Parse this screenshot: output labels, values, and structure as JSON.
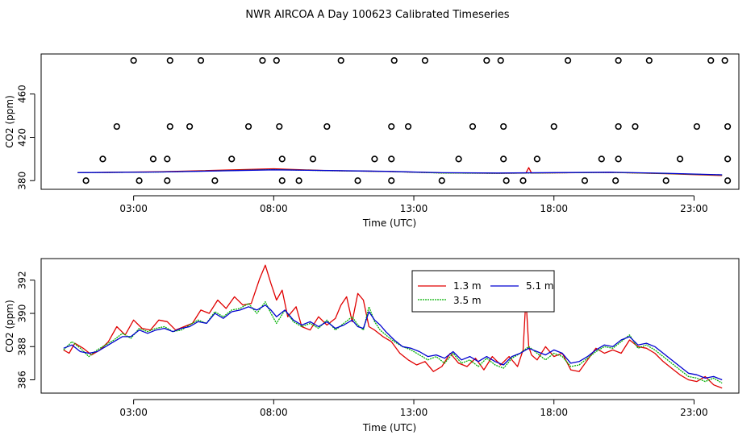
{
  "title": "NWR AIRCOA A  Day 100623  Calibrated Timeseries",
  "colors": {
    "s13": "#e00000",
    "s35": "#00b000",
    "s51": "#0000d0",
    "ink": "#000000"
  },
  "chart_data": [
    {
      "type": "scatter",
      "xlabel": "Time (UTC)",
      "ylabel": "CO2 (ppm)",
      "xlim": [
        -0.3,
        24.6
      ],
      "ylim": [
        372,
        497
      ],
      "x_ticks": [
        3,
        8,
        13,
        18,
        23
      ],
      "x_tick_labels": [
        "03:00",
        "08:00",
        "13:00",
        "18:00",
        "23:00"
      ],
      "y_ticks": [
        380,
        420,
        460
      ],
      "y_tick_labels": [
        "380",
        "420",
        "460"
      ],
      "calibration_points": [
        [
          1.3,
          380
        ],
        [
          1.9,
          400
        ],
        [
          2.4,
          430
        ],
        [
          3.0,
          491
        ],
        [
          3.2,
          380
        ],
        [
          3.7,
          400
        ],
        [
          4.2,
          380
        ],
        [
          4.2,
          400
        ],
        [
          4.3,
          430
        ],
        [
          4.3,
          491
        ],
        [
          5.0,
          430
        ],
        [
          5.4,
          491
        ],
        [
          5.9,
          380
        ],
        [
          6.5,
          400
        ],
        [
          7.1,
          430
        ],
        [
          7.6,
          491
        ],
        [
          8.1,
          491
        ],
        [
          8.2,
          430
        ],
        [
          8.3,
          400
        ],
        [
          8.3,
          380
        ],
        [
          8.9,
          380
        ],
        [
          9.4,
          400
        ],
        [
          9.9,
          430
        ],
        [
          10.4,
          491
        ],
        [
          11.0,
          380
        ],
        [
          11.6,
          400
        ],
        [
          12.2,
          380
        ],
        [
          12.2,
          400
        ],
        [
          12.2,
          430
        ],
        [
          12.3,
          491
        ],
        [
          12.8,
          430
        ],
        [
          13.4,
          491
        ],
        [
          14.0,
          380
        ],
        [
          14.6,
          400
        ],
        [
          15.1,
          430
        ],
        [
          15.6,
          491
        ],
        [
          16.1,
          491
        ],
        [
          16.2,
          430
        ],
        [
          16.2,
          400
        ],
        [
          16.3,
          380
        ],
        [
          16.9,
          380
        ],
        [
          17.4,
          400
        ],
        [
          18.0,
          430
        ],
        [
          18.5,
          491
        ],
        [
          19.1,
          380
        ],
        [
          19.7,
          400
        ],
        [
          20.2,
          380
        ],
        [
          20.3,
          400
        ],
        [
          20.3,
          430
        ],
        [
          20.3,
          491
        ],
        [
          20.9,
          430
        ],
        [
          21.4,
          491
        ],
        [
          22.0,
          380
        ],
        [
          22.5,
          400
        ],
        [
          23.1,
          430
        ],
        [
          23.6,
          491
        ],
        [
          24.1,
          491
        ],
        [
          24.2,
          430
        ],
        [
          24.2,
          400
        ],
        [
          24.2,
          380
        ]
      ],
      "series": [
        {
          "name": "1.3 m",
          "x": [
            1.0,
            4.0,
            8.0,
            10.0,
            12.0,
            14.0,
            16.0,
            17.0,
            17.1,
            17.2,
            20.0,
            22.0,
            24.0
          ],
          "values": [
            387.3,
            388.2,
            391.0,
            389.2,
            388.5,
            387.2,
            386.8,
            387.0,
            392.0,
            387.0,
            387.6,
            386.4,
            384.7
          ]
        },
        {
          "name": "3.5 m",
          "x": [
            1.0,
            4.0,
            8.0,
            10.0,
            12.0,
            14.0,
            16.0,
            20.0,
            22.0,
            24.0
          ],
          "values": [
            387.3,
            388.0,
            390.2,
            389.2,
            388.5,
            387.0,
            386.8,
            387.6,
            386.6,
            385.2
          ]
        },
        {
          "name": "5.1 m",
          "x": [
            1.0,
            4.0,
            8.0,
            10.0,
            12.0,
            14.0,
            16.0,
            20.0,
            22.0,
            24.0
          ],
          "values": [
            387.4,
            388.0,
            390.0,
            389.3,
            388.6,
            387.3,
            387.0,
            387.8,
            386.8,
            385.4
          ]
        }
      ]
    },
    {
      "type": "line",
      "xlabel": "Time (UTC)",
      "ylabel": "CO2 (ppm)",
      "xlim": [
        -0.3,
        24.6
      ],
      "ylim": [
        385.2,
        393.3
      ],
      "x_ticks": [
        3,
        8,
        13,
        18,
        23
      ],
      "x_tick_labels": [
        "03:00",
        "08:00",
        "13:00",
        "18:00",
        "23:00"
      ],
      "y_ticks": [
        386,
        388,
        390,
        392
      ],
      "y_tick_labels": [
        "386",
        "388",
        "390",
        "392"
      ],
      "legend_position": "top-center",
      "series": [
        {
          "name": "1.3 m",
          "x": [
            0.5,
            0.7,
            0.9,
            1.2,
            1.5,
            1.8,
            2.1,
            2.4,
            2.7,
            3.0,
            3.3,
            3.6,
            3.9,
            4.2,
            4.5,
            4.8,
            5.1,
            5.4,
            5.7,
            6.0,
            6.3,
            6.6,
            6.9,
            7.2,
            7.5,
            7.7,
            7.9,
            8.1,
            8.3,
            8.5,
            8.8,
            9.0,
            9.3,
            9.6,
            9.9,
            10.2,
            10.4,
            10.6,
            10.8,
            11.0,
            11.2,
            11.4,
            11.6,
            11.9,
            12.2,
            12.5,
            12.8,
            13.1,
            13.4,
            13.7,
            14.0,
            14.3,
            14.6,
            14.9,
            15.2,
            15.5,
            15.8,
            16.1,
            16.4,
            16.7,
            16.9,
            17.0,
            17.1,
            17.2,
            17.4,
            17.7,
            18.0,
            18.3,
            18.6,
            18.9,
            19.2,
            19.5,
            19.8,
            20.1,
            20.4,
            20.7,
            21.0,
            21.3,
            21.6,
            21.9,
            22.2,
            22.5,
            22.8,
            23.1,
            23.4,
            23.7,
            24.0
          ],
          "values": [
            387.8,
            387.6,
            388.2,
            387.9,
            387.5,
            387.8,
            388.3,
            389.2,
            388.7,
            389.6,
            389.1,
            389.0,
            389.6,
            389.5,
            389.0,
            389.2,
            389.4,
            390.2,
            390.0,
            390.8,
            390.3,
            391.0,
            390.5,
            390.6,
            392.1,
            392.9,
            391.8,
            390.8,
            391.4,
            389.8,
            390.4,
            389.2,
            389.0,
            389.8,
            389.3,
            389.7,
            390.5,
            391.0,
            389.5,
            391.2,
            390.8,
            389.2,
            389.0,
            388.6,
            388.3,
            387.6,
            387.2,
            386.9,
            387.1,
            386.5,
            386.8,
            387.6,
            387.0,
            386.8,
            387.3,
            386.6,
            387.4,
            386.9,
            387.4,
            386.8,
            387.8,
            390.9,
            388.0,
            387.5,
            387.2,
            388.0,
            387.4,
            387.6,
            386.6,
            386.5,
            387.2,
            387.9,
            387.6,
            387.8,
            387.6,
            388.4,
            388.0,
            387.9,
            387.6,
            387.1,
            386.7,
            386.3,
            386.0,
            385.9,
            386.2,
            385.7,
            385.5
          ]
        },
        {
          "name": "3.5 m",
          "x": [
            0.5,
            0.8,
            1.1,
            1.4,
            1.7,
            2.0,
            2.3,
            2.6,
            2.9,
            3.2,
            3.5,
            3.8,
            4.1,
            4.4,
            4.7,
            5.0,
            5.3,
            5.6,
            5.9,
            6.2,
            6.5,
            6.8,
            7.1,
            7.4,
            7.7,
            7.9,
            8.1,
            8.4,
            8.7,
            9.0,
            9.3,
            9.6,
            9.9,
            10.2,
            10.5,
            10.8,
            11.0,
            11.2,
            11.4,
            11.6,
            11.8,
            12.0,
            12.3,
            12.6,
            12.9,
            13.2,
            13.5,
            13.8,
            14.1,
            14.4,
            14.7,
            15.0,
            15.3,
            15.6,
            15.9,
            16.2,
            16.5,
            16.8,
            17.1,
            17.4,
            17.7,
            18.0,
            18.3,
            18.6,
            18.9,
            19.2,
            19.5,
            19.8,
            20.1,
            20.4,
            20.7,
            21.0,
            21.3,
            21.6,
            21.9,
            22.2,
            22.5,
            22.8,
            23.1,
            23.4,
            23.7,
            24.0
          ],
          "values": [
            387.8,
            388.3,
            387.9,
            387.4,
            387.8,
            388.1,
            388.4,
            388.8,
            388.5,
            389.1,
            388.9,
            389.1,
            389.2,
            388.9,
            389.0,
            389.3,
            389.6,
            389.4,
            390.1,
            389.8,
            390.2,
            390.3,
            390.6,
            390.0,
            390.7,
            390.0,
            389.4,
            390.2,
            389.5,
            389.2,
            389.4,
            389.1,
            389.6,
            389.0,
            389.4,
            389.8,
            389.3,
            389.0,
            390.4,
            389.5,
            389.0,
            388.7,
            388.3,
            388.0,
            387.8,
            387.5,
            387.2,
            387.4,
            387.0,
            387.6,
            387.0,
            387.2,
            386.8,
            387.3,
            386.9,
            386.7,
            387.3,
            387.6,
            388.0,
            387.6,
            387.2,
            387.6,
            387.4,
            386.8,
            386.9,
            387.3,
            387.7,
            388.0,
            387.9,
            388.3,
            388.7,
            387.9,
            388.1,
            387.8,
            387.4,
            387.0,
            386.6,
            386.2,
            386.1,
            385.9,
            386.1,
            385.8
          ]
        },
        {
          "name": "5.1 m",
          "x": [
            0.5,
            0.8,
            1.1,
            1.4,
            1.7,
            2.0,
            2.3,
            2.6,
            2.9,
            3.2,
            3.5,
            3.8,
            4.1,
            4.4,
            4.7,
            5.0,
            5.3,
            5.6,
            5.9,
            6.2,
            6.5,
            6.8,
            7.1,
            7.4,
            7.7,
            7.9,
            8.1,
            8.4,
            8.7,
            9.0,
            9.3,
            9.6,
            9.9,
            10.2,
            10.5,
            10.8,
            11.0,
            11.2,
            11.4,
            11.6,
            11.8,
            12.0,
            12.3,
            12.6,
            12.9,
            13.2,
            13.5,
            13.8,
            14.1,
            14.4,
            14.7,
            15.0,
            15.3,
            15.6,
            15.9,
            16.2,
            16.5,
            16.8,
            17.1,
            17.4,
            17.7,
            18.0,
            18.3,
            18.6,
            18.9,
            19.2,
            19.5,
            19.8,
            20.1,
            20.4,
            20.7,
            21.0,
            21.3,
            21.6,
            21.9,
            22.2,
            22.5,
            22.8,
            23.1,
            23.4,
            23.7,
            24.0
          ],
          "values": [
            387.9,
            388.1,
            387.7,
            387.6,
            387.7,
            388.0,
            388.3,
            388.6,
            388.6,
            389.0,
            388.8,
            389.0,
            389.1,
            388.9,
            389.1,
            389.2,
            389.5,
            389.4,
            390.0,
            389.7,
            390.1,
            390.2,
            390.4,
            390.2,
            390.5,
            390.2,
            389.8,
            390.2,
            389.6,
            389.3,
            389.5,
            389.2,
            389.5,
            389.1,
            389.3,
            389.6,
            389.2,
            389.1,
            390.1,
            389.6,
            389.3,
            388.9,
            388.4,
            388.0,
            387.9,
            387.7,
            387.4,
            387.5,
            387.3,
            387.7,
            387.2,
            387.4,
            387.1,
            387.4,
            387.1,
            386.9,
            387.4,
            387.6,
            387.9,
            387.7,
            387.5,
            387.8,
            387.6,
            387.0,
            387.1,
            387.4,
            387.8,
            388.1,
            388.0,
            388.4,
            388.6,
            388.1,
            388.2,
            388.0,
            387.6,
            387.2,
            386.8,
            386.4,
            386.3,
            386.1,
            386.2,
            386.0
          ]
        }
      ]
    }
  ]
}
